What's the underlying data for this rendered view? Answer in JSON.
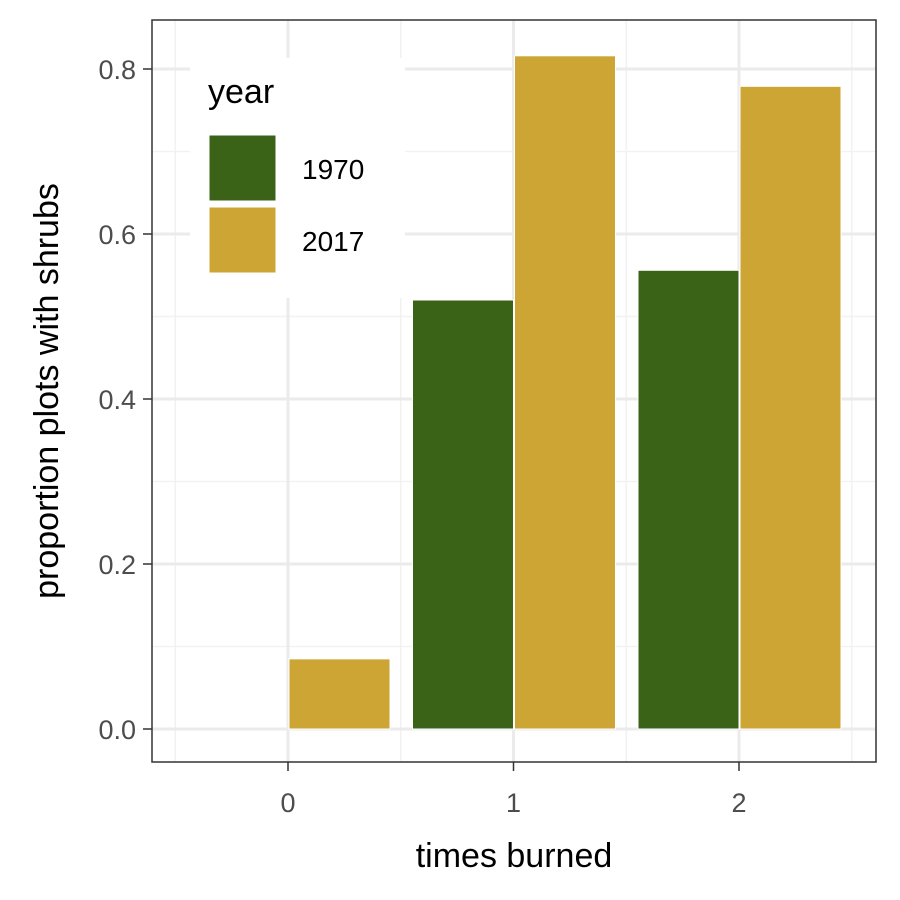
{
  "chart_data": {
    "type": "bar",
    "title": "",
    "xlabel": "times burned",
    "ylabel": "proportion plots with shrubs",
    "categories": [
      "0",
      "1",
      "2"
    ],
    "series": [
      {
        "name": "1970",
        "color": "#3a6318",
        "values": [
          0,
          0.52,
          0.556
        ]
      },
      {
        "name": "2017",
        "color": "#cca535",
        "values": [
          0.085,
          0.816,
          0.779
        ]
      }
    ],
    "ylim": [
      -0.038,
      0.857
    ],
    "yticks": [
      0.0,
      0.2,
      0.4,
      0.6,
      0.8
    ],
    "ytick_labels": [
      "0.0",
      "0.2",
      "0.4",
      "0.6",
      "0.8"
    ],
    "grid": true,
    "legend": {
      "title": "year",
      "position": "top-left-inside"
    }
  }
}
